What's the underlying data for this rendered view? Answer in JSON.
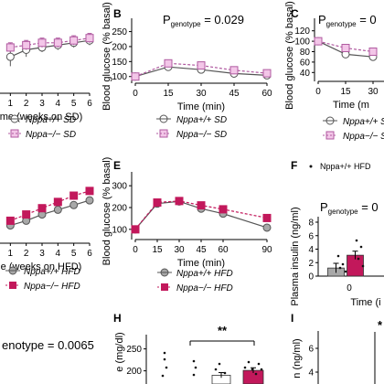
{
  "colors": {
    "sd_wt_fill": "#ffffff",
    "sd_ko_fill": "#f3c6e8",
    "sd_ko_stroke": "#b05aa0",
    "hfd_wt_fill": "#a8a8a8",
    "hfd_ko_fill": "#c2185b",
    "axis": "#000000",
    "dot": "#111111"
  },
  "panel_letters": {
    "B": "B",
    "C": "C",
    "E": "E",
    "F": "F",
    "H": "H",
    "I": "I"
  },
  "legend": {
    "wt_sd": "Nppa+/+ SD",
    "ko_sd": "Nppa−/− SD",
    "wt_hfd": "Nppa+/+ HFD",
    "ko_hfd": "Nppa−/− HFD",
    "f_wt": "Nppa+/+ HFD"
  },
  "annotations": {
    "B_p": "P",
    "B_p_sub": "genotype",
    "B_p_val": " = 0.029",
    "C_p": "P",
    "C_p_sub": "genotype",
    "C_p_val": " = 0",
    "F_p": "P",
    "F_p_sub": "genotype",
    "F_p_val": " = 0",
    "G_p_val": "enotype = 0.0065",
    "H_sig": "**"
  },
  "chart_data": [
    {
      "id": "A",
      "type": "line",
      "xlabel": "me (weeks on SD)",
      "x": [
        0,
        1,
        2,
        3,
        4,
        5,
        6
      ],
      "xticks": [
        "1",
        "2",
        "3",
        "4",
        "5",
        "6"
      ],
      "series": [
        {
          "name": "Nppa+/+ SD",
          "values": [
            null,
            34,
            37,
            38,
            39,
            40,
            41
          ],
          "err": [
            null,
            4,
            3,
            2,
            2,
            2,
            2
          ]
        },
        {
          "name": "Nppa−/− SD",
          "values": [
            null,
            38,
            39,
            40,
            40,
            41,
            42
          ],
          "err": [
            null,
            2,
            2,
            2,
            2,
            2,
            2
          ]
        }
      ]
    },
    {
      "id": "B",
      "type": "line",
      "xlabel": "Time (min)",
      "ylabel": "Blood glucose (% basal)",
      "x": [
        0,
        15,
        30,
        45,
        60
      ],
      "xticks": [
        "0",
        "15",
        "30",
        "45",
        "60"
      ],
      "yticks": [
        "100",
        "150",
        "200",
        "250"
      ],
      "ylim": [
        90,
        270
      ],
      "series": [
        {
          "name": "Nppa+/+ SD",
          "values": [
            100,
            132,
            123,
            110,
            104
          ],
          "err": [
            3,
            7,
            6,
            4,
            3
          ]
        },
        {
          "name": "Nppa−/− SD",
          "values": [
            100,
            144,
            137,
            121,
            111
          ],
          "err": [
            3,
            7,
            6,
            5,
            4
          ]
        }
      ]
    },
    {
      "id": "C",
      "type": "line",
      "xlabel": "Time (m",
      "ylabel": "Blood glucose (% basal)",
      "x": [
        0,
        15,
        30
      ],
      "xticks": [
        "0",
        "15",
        "30"
      ],
      "yticks": [
        "40",
        "60",
        "80",
        "100",
        "120"
      ],
      "ylim": [
        30,
        130
      ],
      "series": [
        {
          "name": "Nppa+/+ SD",
          "values": [
            100,
            75,
            70
          ],
          "err": [
            2,
            5,
            5
          ]
        },
        {
          "name": "Nppa−/− SD",
          "values": [
            100,
            87,
            80
          ],
          "err": [
            2,
            4,
            4
          ]
        }
      ]
    },
    {
      "id": "D",
      "type": "line",
      "xlabel": "e (weeks on HFD)",
      "x": [
        0,
        1,
        2,
        3,
        4,
        5,
        6
      ],
      "xticks": [
        "1",
        "2",
        "3",
        "4",
        "5",
        "6"
      ],
      "series": [
        {
          "name": "Nppa+/+ HFD",
          "values": [
            null,
            24,
            27,
            31,
            34,
            37,
            40
          ],
          "err": [
            null,
            2,
            2,
            2,
            2,
            2,
            2
          ]
        },
        {
          "name": "Nppa−/− HFD",
          "values": [
            null,
            27,
            31,
            35,
            39,
            43,
            46
          ],
          "err": [
            null,
            2,
            2,
            2,
            2,
            2,
            2
          ]
        }
      ]
    },
    {
      "id": "E",
      "type": "line",
      "xlabel": "Time (min)",
      "ylabel": "Blood glucose (% basal)",
      "x": [
        0,
        15,
        30,
        45,
        60,
        90
      ],
      "xticks": [
        "0",
        "15",
        "30",
        "45",
        "60",
        "90"
      ],
      "yticks": [
        "100",
        "200",
        "300"
      ],
      "ylim": [
        70,
        330
      ],
      "series": [
        {
          "name": "Nppa+/+ HFD",
          "values": [
            100,
            218,
            228,
            195,
            172,
            108
          ],
          "err": [
            3,
            8,
            12,
            10,
            8,
            5
          ]
        },
        {
          "name": "Nppa−/− HFD",
          "values": [
            100,
            223,
            230,
            210,
            192,
            152
          ],
          "err": [
            3,
            8,
            10,
            12,
            10,
            8
          ]
        }
      ]
    },
    {
      "id": "F",
      "type": "bar",
      "ylabel": "Plasma insulin (ng/ml)",
      "xlabel": "Time (i",
      "categories": [
        "0"
      ],
      "yticks": [
        "0",
        "2",
        "4",
        "6",
        "8"
      ],
      "ylim": [
        0,
        8
      ],
      "series": [
        {
          "name": "Nppa+/+ HFD",
          "values": [
            1.2
          ],
          "err": [
            0.7
          ]
        },
        {
          "name": "Nppa−/− HFD",
          "values": [
            3.1
          ],
          "err": [
            0.6
          ]
        }
      ]
    },
    {
      "id": "H",
      "type": "bar",
      "ylabel": "e (mg/dl)",
      "yticks": [
        "200",
        "250"
      ],
      "ylim": [
        170,
        270
      ],
      "series": [
        {
          "name": "Nppa+/+ HFD",
          "values": [
            190
          ],
          "err": [
            6
          ]
        },
        {
          "name": "Nppa−/− HFD",
          "values": [
            201
          ],
          "err": [
            6
          ]
        }
      ]
    },
    {
      "id": "I",
      "type": "bar",
      "ylabel": "n (ng/ml)",
      "yticks": [
        "4",
        "6"
      ],
      "ylim": [
        3,
        7
      ],
      "series": []
    }
  ]
}
